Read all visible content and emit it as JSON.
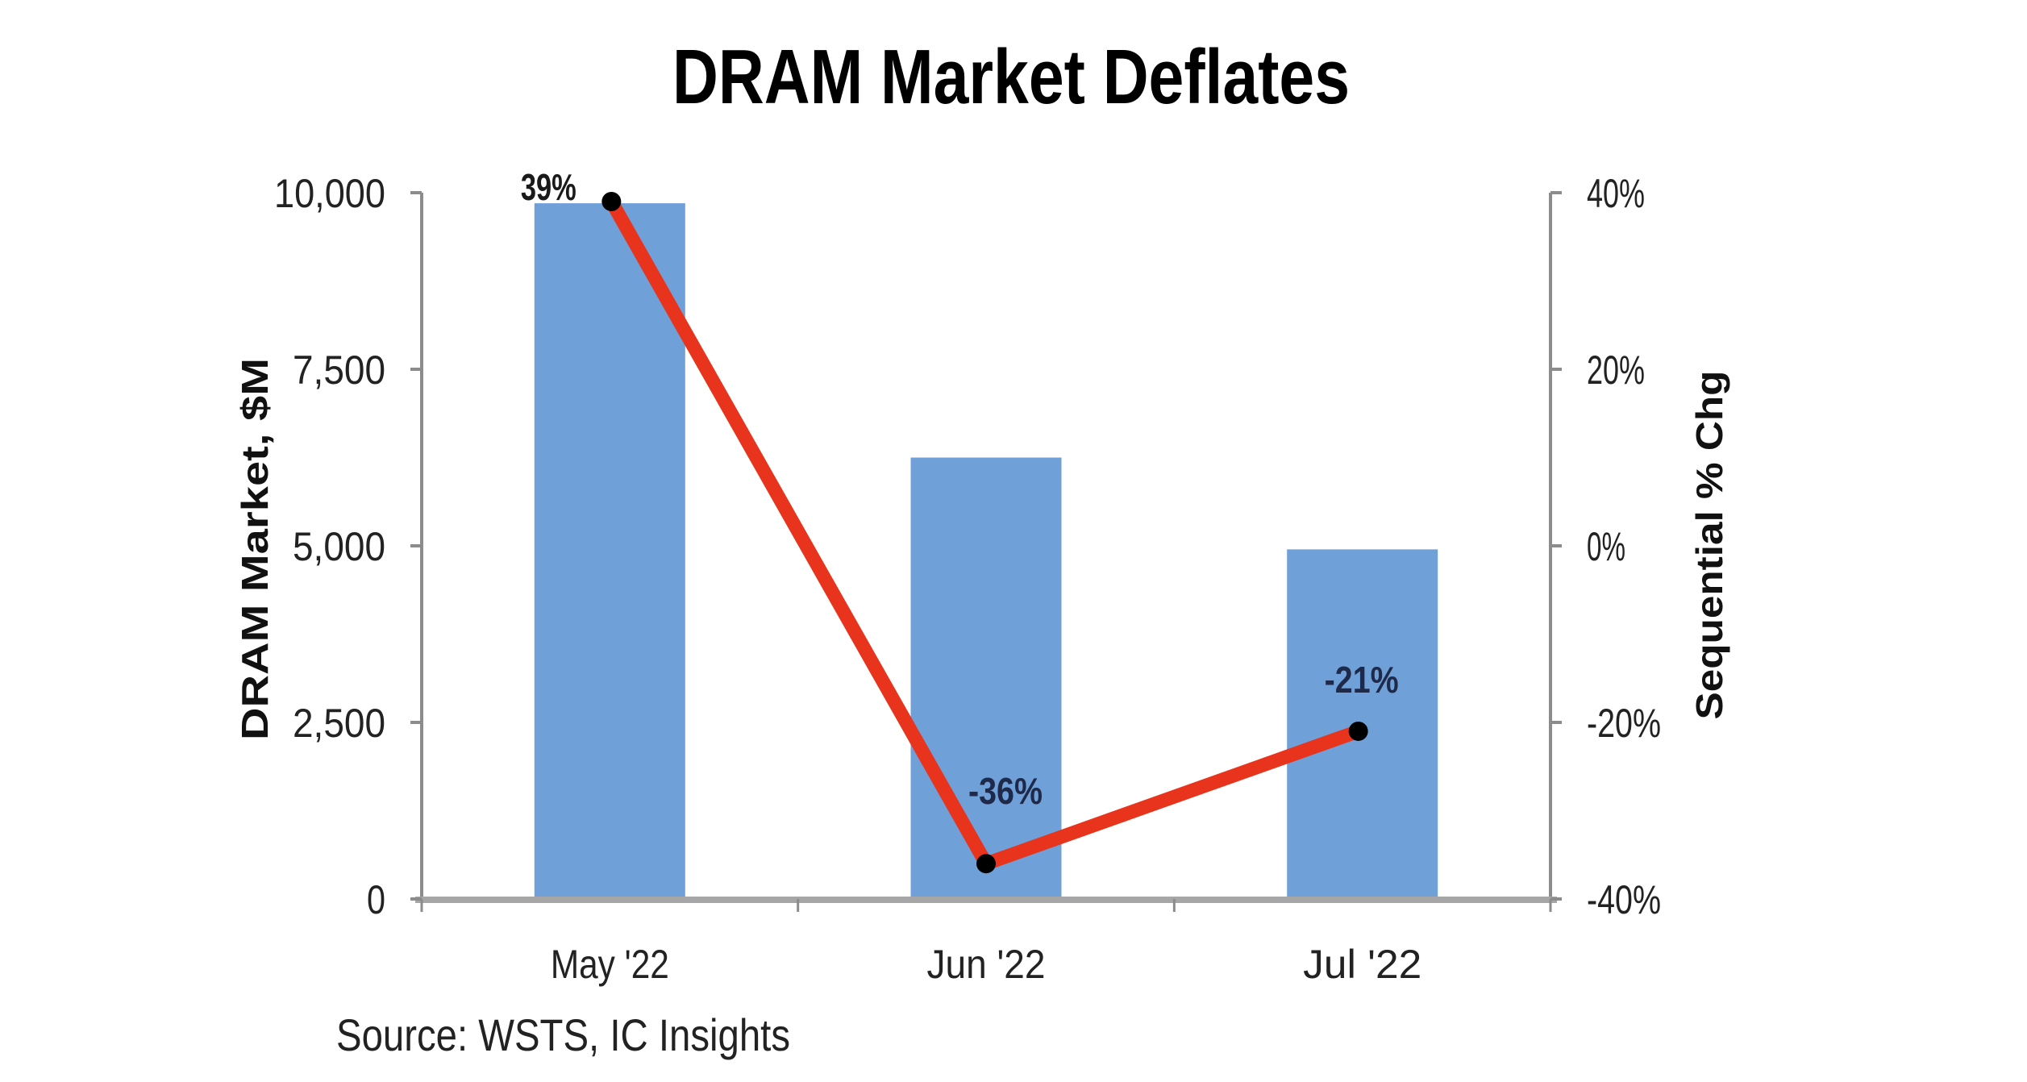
{
  "chart_data": {
    "type": "bar+line",
    "title": "DRAM Market Deflates",
    "categories": [
      "May '22",
      "Jun '22",
      "Jul '22"
    ],
    "series": [
      {
        "name": "DRAM Market, $M",
        "type": "bar",
        "axis": "left",
        "values": [
          9850,
          6250,
          4950
        ],
        "color": "#6fa0d8"
      },
      {
        "name": "Sequential % Chg",
        "type": "line",
        "axis": "right",
        "values": [
          39,
          -36,
          -21
        ],
        "labels": [
          "39%",
          "-36%",
          "-21%"
        ],
        "color": "#e8341c",
        "marker_color": "#000000"
      }
    ],
    "y_left": {
      "label": "DRAM Market, $M",
      "range": [
        0,
        10000
      ],
      "ticks": [
        0,
        2500,
        5000,
        7500,
        10000
      ],
      "tick_labels": [
        "0",
        "2,500",
        "5,000",
        "7,500",
        "10,000"
      ]
    },
    "y_right": {
      "label": "Sequential % Chg",
      "range": [
        -40,
        40
      ],
      "ticks": [
        -40,
        -20,
        0,
        20,
        40
      ],
      "tick_labels": [
        "-40%",
        "-20%",
        "0%",
        "20%",
        "40%"
      ]
    },
    "xlabel": "",
    "grid": false,
    "legend": "none",
    "source": "Source:  WSTS, IC Insights"
  }
}
